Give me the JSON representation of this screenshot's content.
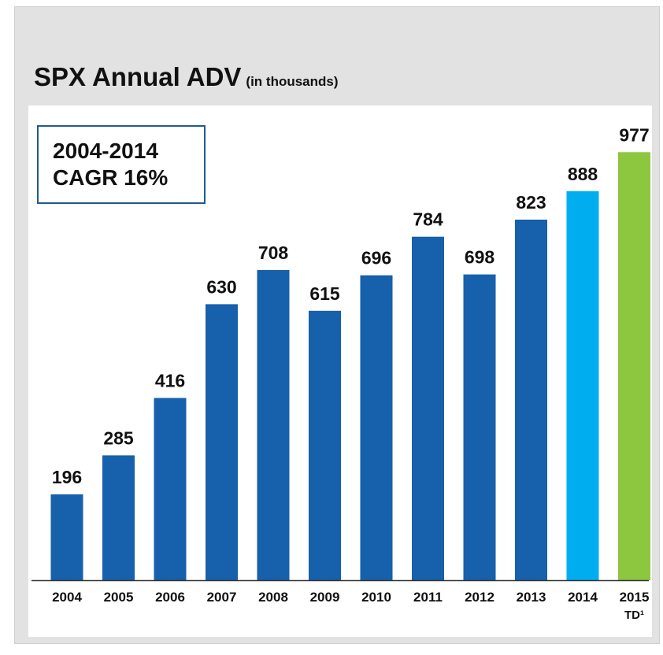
{
  "chart_data": {
    "type": "bar",
    "title": "SPX Annual ADV",
    "subtitle": "(in thousands)",
    "categories": [
      "2004",
      "2005",
      "2006",
      "2007",
      "2008",
      "2009",
      "2010",
      "2011",
      "2012",
      "2013",
      "2014",
      "2015"
    ],
    "category_sublabels": {
      "2015": "TD¹"
    },
    "values": [
      196,
      285,
      416,
      630,
      708,
      615,
      696,
      784,
      698,
      823,
      888,
      977
    ],
    "colors": [
      "#1660ac",
      "#1660ac",
      "#1660ac",
      "#1660ac",
      "#1660ac",
      "#1660ac",
      "#1660ac",
      "#1660ac",
      "#1660ac",
      "#1660ac",
      "#00aeef",
      "#8dc63f"
    ],
    "xlabel": "",
    "ylabel": "",
    "ylim": [
      0,
      1000
    ],
    "grid": false,
    "annotation": {
      "line1": "2004-2014",
      "line2": "CAGR 16%"
    }
  }
}
